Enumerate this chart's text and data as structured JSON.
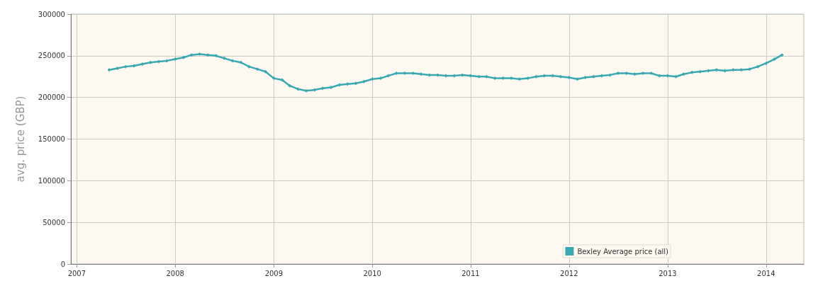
{
  "chart_data": {
    "type": "line",
    "ylabel": "avg. price (GBP)",
    "x": [
      "2007-05",
      "2007-06",
      "2007-07",
      "2007-08",
      "2007-09",
      "2007-10",
      "2007-11",
      "2007-12",
      "2008-01",
      "2008-02",
      "2008-03",
      "2008-04",
      "2008-05",
      "2008-06",
      "2008-07",
      "2008-08",
      "2008-09",
      "2008-10",
      "2008-11",
      "2008-12",
      "2009-01",
      "2009-02",
      "2009-03",
      "2009-04",
      "2009-05",
      "2009-06",
      "2009-07",
      "2009-08",
      "2009-09",
      "2009-10",
      "2009-11",
      "2009-12",
      "2010-01",
      "2010-02",
      "2010-03",
      "2010-04",
      "2010-05",
      "2010-06",
      "2010-07",
      "2010-08",
      "2010-09",
      "2010-10",
      "2010-11",
      "2010-12",
      "2011-01",
      "2011-02",
      "2011-03",
      "2011-04",
      "2011-05",
      "2011-06",
      "2011-07",
      "2011-08",
      "2011-09",
      "2011-10",
      "2011-11",
      "2011-12",
      "2012-01",
      "2012-02",
      "2012-03",
      "2012-04",
      "2012-05",
      "2012-06",
      "2012-07",
      "2012-08",
      "2012-09",
      "2012-10",
      "2012-11",
      "2012-12",
      "2013-01",
      "2013-02",
      "2013-03",
      "2013-04",
      "2013-05",
      "2013-06",
      "2013-07",
      "2013-08",
      "2013-09",
      "2013-10",
      "2013-11",
      "2013-12",
      "2014-01",
      "2014-02",
      "2014-03"
    ],
    "series": [
      {
        "name": "Bexley Average price (all)",
        "color": "#3aa8b0",
        "values": [
          233000,
          235000,
          237000,
          238000,
          240000,
          242000,
          243000,
          244000,
          246000,
          248000,
          251000,
          252000,
          251000,
          250000,
          247000,
          244000,
          242000,
          237000,
          234000,
          231000,
          223000,
          221000,
          214000,
          210000,
          208000,
          209000,
          211000,
          212000,
          215000,
          216000,
          217000,
          219000,
          222000,
          223000,
          226000,
          229000,
          229000,
          229000,
          228000,
          227000,
          227000,
          226000,
          226000,
          227000,
          226000,
          225000,
          225000,
          223000,
          223000,
          223000,
          222000,
          223000,
          225000,
          226000,
          226000,
          225000,
          224000,
          222000,
          224000,
          225000,
          226000,
          227000,
          229000,
          229000,
          228000,
          229000,
          229000,
          226000,
          226000,
          225000,
          228000,
          230000,
          231000,
          232000,
          233000,
          232000,
          233000,
          233000,
          234000,
          237000,
          241000,
          246000,
          251000
        ]
      }
    ],
    "xlim": [
      "2006-12-10",
      "2014-05-21"
    ],
    "xticks": [
      "2007",
      "2008",
      "2009",
      "2010",
      "2011",
      "2012",
      "2013",
      "2014"
    ],
    "ylim": [
      0,
      300000
    ],
    "yticks": [
      0,
      50000,
      100000,
      150000,
      200000,
      250000,
      300000
    ],
    "grid": true,
    "legend": "bottom right",
    "marker": "diamond",
    "line_style": "solid"
  }
}
